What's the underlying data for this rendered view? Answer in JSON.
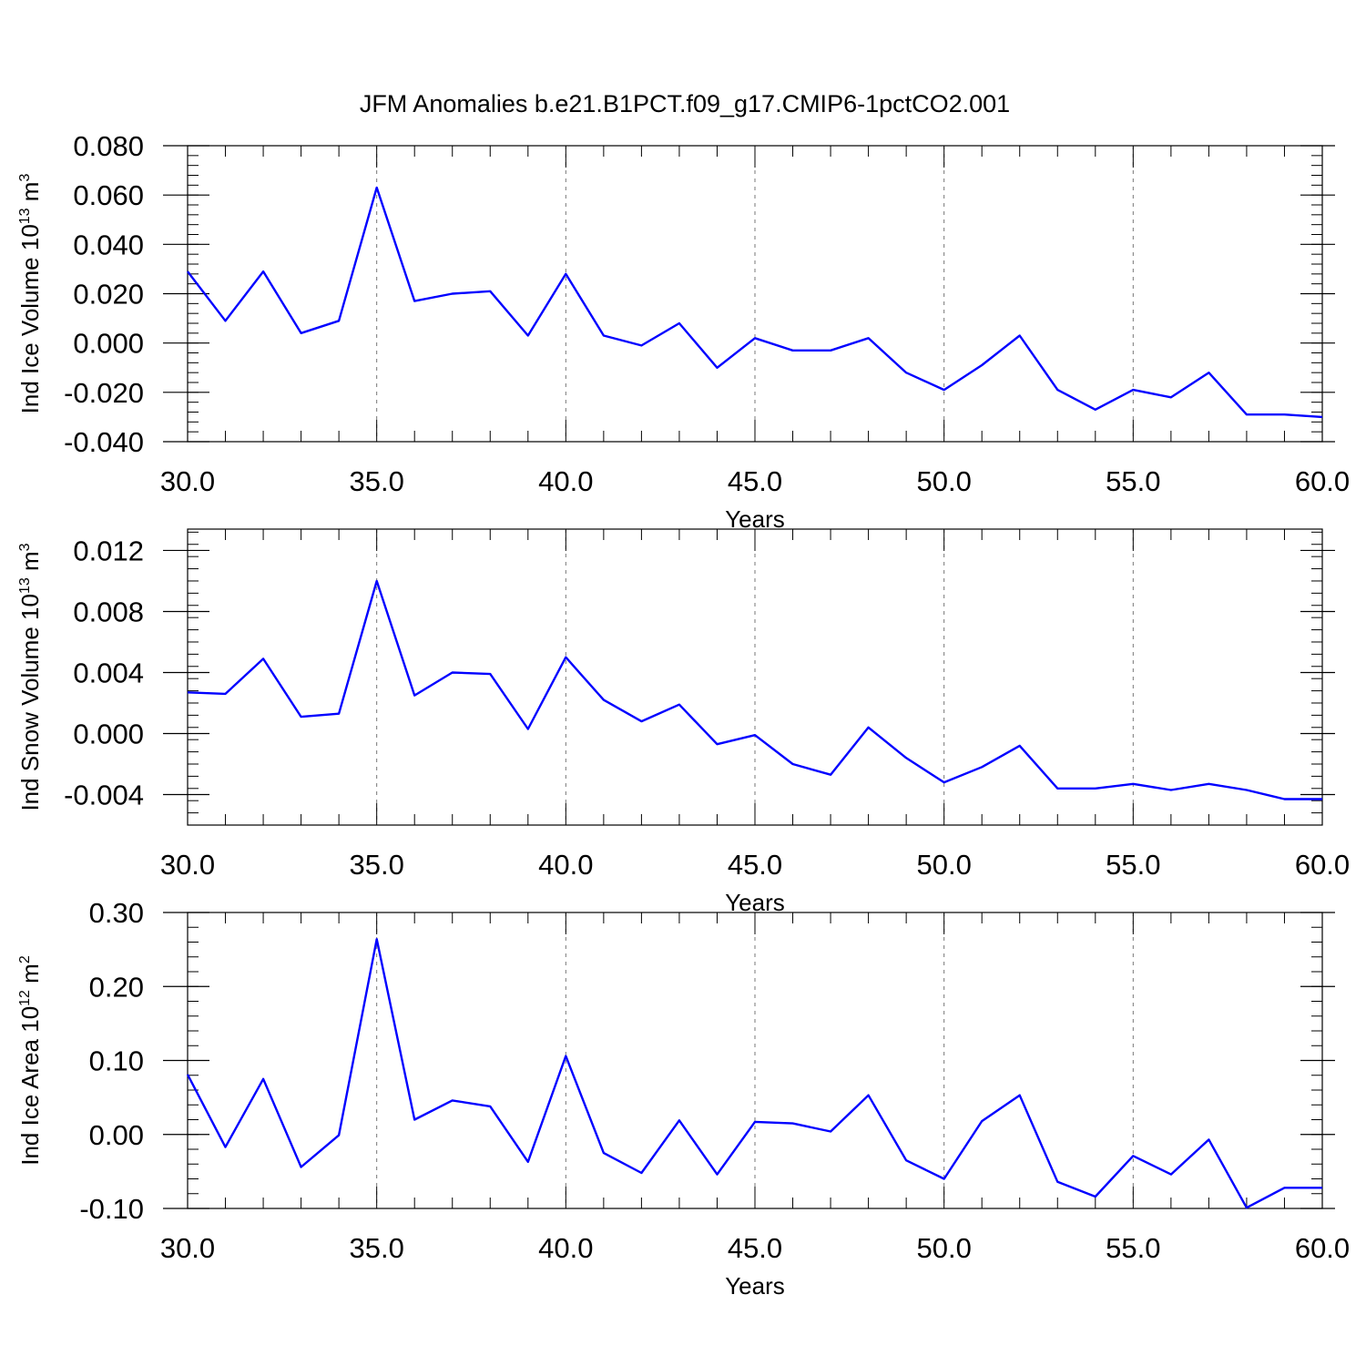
{
  "figure_title": "JFM Anomalies b.e21.B1PCT.f09_g17.CMIP6-1pctCO2.001",
  "line_color": "#0000ff",
  "chart_data": [
    {
      "type": "line",
      "ylabel": {
        "prefix": "Ind Ice Volume 10",
        "exp": "13",
        "unit": " m",
        "unit_exp": "3"
      },
      "xlabel": "Years",
      "xlim": [
        30,
        60
      ],
      "ylim": [
        -0.04,
        0.08
      ],
      "xticks": [
        30,
        35,
        40,
        45,
        50,
        55,
        60
      ],
      "xtick_labels": [
        "30.0",
        "35.0",
        "40.0",
        "45.0",
        "50.0",
        "55.0",
        "60.0"
      ],
      "yticks": [
        0.08,
        0.06,
        0.04,
        0.02,
        0.0,
        -0.02,
        -0.04
      ],
      "ytick_labels": [
        "0.080",
        "0.060",
        "0.040",
        "0.020",
        "0.000",
        "-0.020",
        "-0.040"
      ],
      "grid": "dashed vertical at major x ticks",
      "series": [
        {
          "x": [
            30,
            31,
            32,
            33,
            34,
            35,
            36,
            37,
            38,
            39,
            40,
            41,
            42,
            43,
            44,
            45,
            46,
            47,
            48,
            49,
            50,
            51,
            52,
            53,
            54,
            55,
            56,
            57,
            58,
            59,
            60
          ],
          "values": [
            0.029,
            0.009,
            0.029,
            0.004,
            0.009,
            0.063,
            0.017,
            0.02,
            0.021,
            0.003,
            0.028,
            0.003,
            -0.001,
            0.008,
            -0.01,
            0.002,
            -0.003,
            -0.003,
            0.002,
            -0.012,
            -0.019,
            -0.009,
            0.003,
            -0.019,
            -0.027,
            -0.019,
            -0.022,
            -0.012,
            -0.029,
            -0.029,
            -0.03
          ]
        }
      ]
    },
    {
      "type": "line",
      "ylabel": {
        "prefix": "Ind Snow Volume 10",
        "exp": "13",
        "unit": " m",
        "unit_exp": "3"
      },
      "xlabel": "Years",
      "xlim": [
        30,
        60
      ],
      "ylim": [
        -0.006,
        0.0134
      ],
      "xticks": [
        30,
        35,
        40,
        45,
        50,
        55,
        60
      ],
      "xtick_labels": [
        "30.0",
        "35.0",
        "40.0",
        "45.0",
        "50.0",
        "55.0",
        "60.0"
      ],
      "yticks": [
        0.012,
        0.008,
        0.004,
        0.0,
        -0.004
      ],
      "ytick_labels": [
        "0.012",
        "0.008",
        "0.004",
        "0.000",
        "-0.004"
      ],
      "grid": "dashed vertical at major x ticks",
      "series": [
        {
          "x": [
            30,
            31,
            32,
            33,
            34,
            35,
            36,
            37,
            38,
            39,
            40,
            41,
            42,
            43,
            44,
            45,
            46,
            47,
            48,
            49,
            50,
            51,
            52,
            53,
            54,
            55,
            56,
            57,
            58,
            59,
            60
          ],
          "values": [
            0.0027,
            0.0026,
            0.0049,
            0.0011,
            0.0013,
            0.01,
            0.0025,
            0.004,
            0.0039,
            0.0003,
            0.005,
            0.0022,
            0.0008,
            0.0019,
            -0.0007,
            -0.0001,
            -0.002,
            -0.0027,
            0.0004,
            -0.0016,
            -0.0032,
            -0.0022,
            -0.0008,
            -0.0036,
            -0.0036,
            -0.0033,
            -0.0037,
            -0.0033,
            -0.0037,
            -0.0043,
            -0.0043
          ]
        }
      ]
    },
    {
      "type": "line",
      "ylabel": {
        "prefix": "Ind Ice Area 10",
        "exp": "12",
        "unit": " m",
        "unit_exp": "2"
      },
      "xlabel": "Years",
      "xlim": [
        30,
        60
      ],
      "ylim": [
        -0.1,
        0.3
      ],
      "xticks": [
        30,
        35,
        40,
        45,
        50,
        55,
        60
      ],
      "xtick_labels": [
        "30.0",
        "35.0",
        "40.0",
        "45.0",
        "50.0",
        "55.0",
        "60.0"
      ],
      "yticks": [
        0.3,
        0.2,
        0.1,
        0.0,
        -0.1
      ],
      "ytick_labels": [
        "0.30",
        "0.20",
        "0.10",
        "0.00",
        "-0.10"
      ],
      "grid": "dashed vertical at major x ticks",
      "series": [
        {
          "x": [
            30,
            31,
            32,
            33,
            34,
            35,
            36,
            37,
            38,
            39,
            40,
            41,
            42,
            43,
            44,
            45,
            46,
            47,
            48,
            49,
            50,
            51,
            52,
            53,
            54,
            55,
            56,
            57,
            58,
            59,
            60
          ],
          "values": [
            0.081,
            -0.017,
            0.075,
            -0.044,
            -0.001,
            0.264,
            0.02,
            0.046,
            0.038,
            -0.037,
            0.106,
            -0.025,
            -0.052,
            0.019,
            -0.054,
            0.017,
            0.015,
            0.004,
            0.053,
            -0.035,
            -0.06,
            0.018,
            0.053,
            -0.064,
            -0.084,
            -0.029,
            -0.054,
            -0.007,
            -0.099,
            -0.072,
            -0.072
          ]
        }
      ]
    }
  ]
}
